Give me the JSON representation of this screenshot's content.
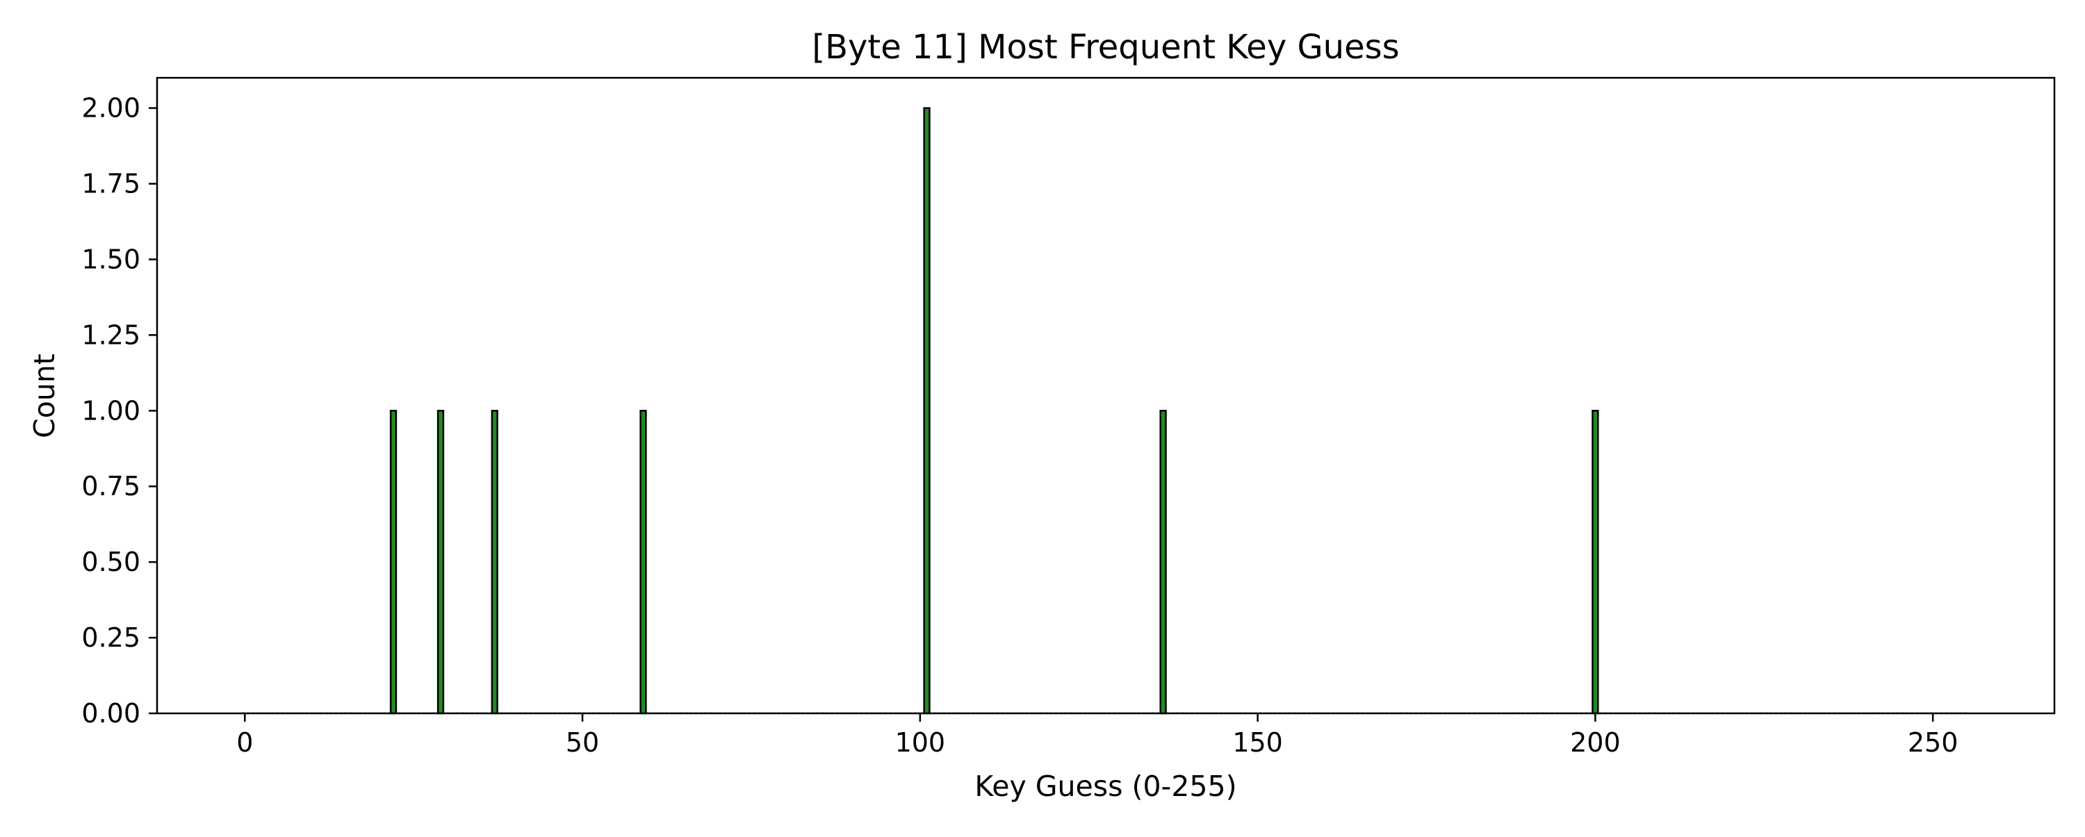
{
  "chart_data": {
    "type": "bar",
    "title": "[Byte 11] Most Frequent Key Guess",
    "xlabel": "Key Guess (0-255)",
    "ylabel": "Count",
    "xlim": [
      -13,
      268
    ],
    "ylim": [
      0,
      2.1
    ],
    "x_ticks": [
      0,
      50,
      100,
      150,
      200,
      250
    ],
    "x_tick_labels": [
      "0",
      "50",
      "100",
      "150",
      "200",
      "250"
    ],
    "y_ticks": [
      0,
      0.25,
      0.5,
      0.75,
      1.0,
      1.25,
      1.5,
      1.75,
      2.0
    ],
    "y_tick_labels": [
      "0.00",
      "0.25",
      "0.50",
      "0.75",
      "1.00",
      "1.25",
      "1.50",
      "1.75",
      "2.00"
    ],
    "bin_range": [
      0,
      255
    ],
    "bars": [
      {
        "x": 22,
        "value": 1
      },
      {
        "x": 29,
        "value": 1
      },
      {
        "x": 37,
        "value": 1
      },
      {
        "x": 59,
        "value": 1
      },
      {
        "x": 101,
        "value": 2
      },
      {
        "x": 136,
        "value": 1
      },
      {
        "x": 200,
        "value": 1
      }
    ],
    "grid": false,
    "legend": "none",
    "bar_color": "#228B22",
    "edge_color": "#000000"
  }
}
